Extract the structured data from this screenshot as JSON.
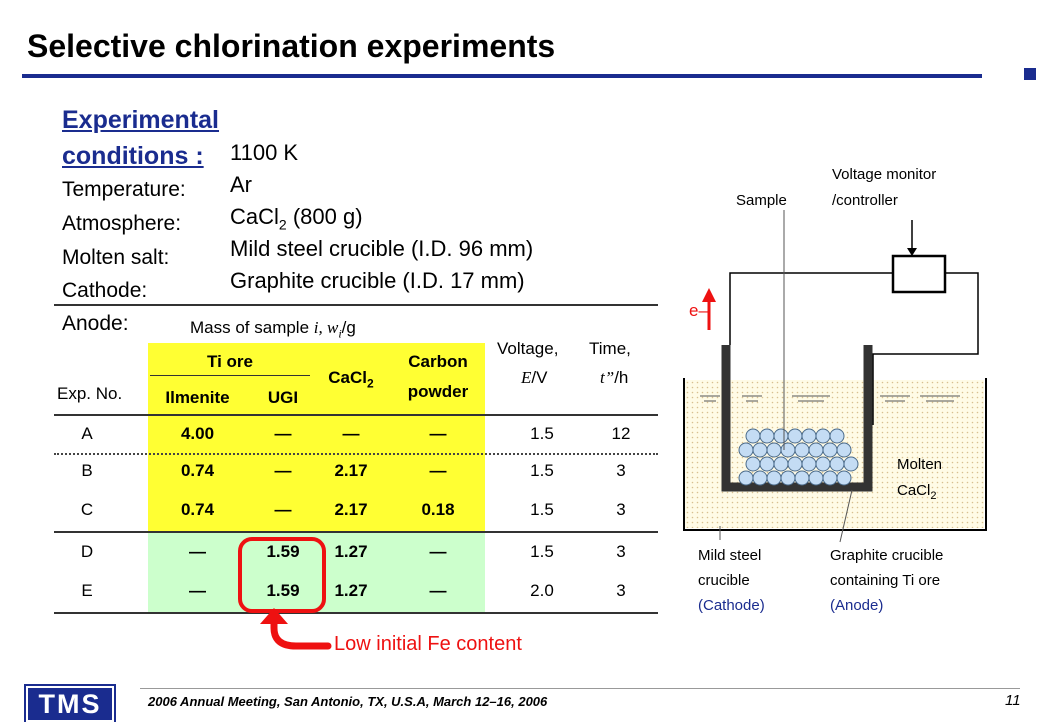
{
  "title": "Selective chlorination experiments",
  "conditions": {
    "heading": "Experimental conditions :",
    "labels": [
      "Temperature:",
      "Atmosphere:",
      "Molten salt:",
      "Cathode:",
      "Anode:"
    ],
    "values": {
      "temperature": "1100 K",
      "atmosphere": "Ar",
      "molten_salt_prefix": "CaCl",
      "molten_salt_sub": "2",
      "molten_salt_suffix": " (800 g)",
      "cathode": "Mild steel crucible (I.D. 96 mm)",
      "anode": "Graphite crucible (I.D. 17 mm)"
    }
  },
  "table": {
    "mass_header": "Mass of sample ",
    "mass_header_var": "i, w",
    "mass_header_sub": "i",
    "mass_header_unit": "/g",
    "ti_ore": "Ti ore",
    "ilmenite": "Ilmenite",
    "ugi": "UGI",
    "cacl2": "CaCl",
    "cacl2_sub": "2",
    "carbon_line1": "Carbon",
    "carbon_line2": "powder",
    "voltage_line1": "Voltage,",
    "voltage_var": "E",
    "voltage_unit": "/V",
    "time_line1": "Time,",
    "time_var": "t”",
    "time_unit": "/h",
    "exp_no": "Exp. No.",
    "rows": [
      {
        "exp": "A",
        "ilmenite": "4.00",
        "ugi": "—",
        "cacl2": "—",
        "carbon": "—",
        "voltage": "1.5",
        "time": "12"
      },
      {
        "exp": "B",
        "ilmenite": "0.74",
        "ugi": "—",
        "cacl2": "2.17",
        "carbon": "—",
        "voltage": "1.5",
        "time": "3"
      },
      {
        "exp": "C",
        "ilmenite": "0.74",
        "ugi": "—",
        "cacl2": "2.17",
        "carbon": "0.18",
        "voltage": "1.5",
        "time": "3"
      },
      {
        "exp": "D",
        "ilmenite": "—",
        "ugi": "1.59",
        "cacl2": "1.27",
        "carbon": "—",
        "voltage": "1.5",
        "time": "3"
      },
      {
        "exp": "E",
        "ilmenite": "—",
        "ugi": "1.59",
        "cacl2": "1.27",
        "carbon": "—",
        "voltage": "2.0",
        "time": "3"
      }
    ]
  },
  "annotation": "Low initial Fe content",
  "diagram": {
    "sample": "Sample",
    "voltage_monitor_1": "Voltage monitor",
    "voltage_monitor_2": "/controller",
    "electron": "e–",
    "molten_1": "Molten",
    "molten_2": "CaCl",
    "molten_sub": "2",
    "mild_1": "Mild steel",
    "mild_2": "crucible",
    "mild_3": "(Cathode)",
    "graphite_1": "Graphite crucible",
    "graphite_2": "containing Ti ore",
    "graphite_3": "(Anode)"
  },
  "colors": {
    "title_blue": "#1a2c8f",
    "highlight_yellow": "#ffff33",
    "highlight_green": "#ccffcc",
    "annotation_red": "#ee1111",
    "label_blue": "#1a2c8f"
  },
  "footer": {
    "logo": "TMS",
    "text": "2006 Annual Meeting, San Antonio, TX, U.S.A, March 12–16, 2006",
    "page": "11"
  }
}
